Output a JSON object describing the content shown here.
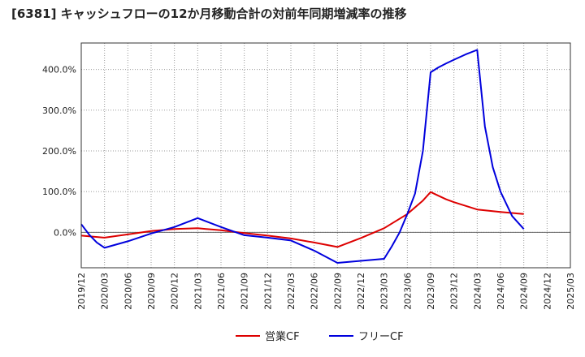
{
  "chart_data": {
    "type": "line",
    "title": "[6381]  キャッシュフローの12か月移動合計の対前年同期増減率の推移",
    "xlabel": "",
    "ylabel": "",
    "x": [
      "2019/12",
      "2020/03",
      "2020/06",
      "2020/09",
      "2020/12",
      "2021/03",
      "2021/06",
      "2021/09",
      "2021/12",
      "2022/03",
      "2022/06",
      "2022/09",
      "2022/12",
      "2023/03",
      "2023/06",
      "2023/09",
      "2023/12",
      "2024/03",
      "2024/06",
      "2024/09",
      "2024/12",
      "2025/03"
    ],
    "ylim": [
      -87,
      465
    ],
    "yticks": [
      0,
      100,
      200,
      300,
      400
    ],
    "ytick_labels": [
      "0.0%",
      "100.0%",
      "200.0%",
      "300.0%",
      "400.0%"
    ],
    "grid": true,
    "legend_position": "bottom-center",
    "series": [
      {
        "name": "営業CF",
        "color": "#dd0000",
        "points": [
          {
            "x": 0,
            "y": -8
          },
          {
            "x": 1,
            "y": -13
          },
          {
            "x": 2,
            "y": -5
          },
          {
            "x": 3,
            "y": 3
          },
          {
            "x": 4,
            "y": 8
          },
          {
            "x": 5,
            "y": 10
          },
          {
            "x": 6,
            "y": 5
          },
          {
            "x": 7,
            "y": -2
          },
          {
            "x": 8,
            "y": -8
          },
          {
            "x": 9,
            "y": -15
          },
          {
            "x": 10,
            "y": -25
          },
          {
            "x": 11,
            "y": -36
          },
          {
            "x": 12,
            "y": -14
          },
          {
            "x": 13,
            "y": 10
          },
          {
            "x": 14,
            "y": 45
          },
          {
            "x": 14.67,
            "y": 78
          },
          {
            "x": 15,
            "y": 99
          },
          {
            "x": 15.33,
            "y": 90
          },
          {
            "x": 15.67,
            "y": 81
          },
          {
            "x": 16,
            "y": 74
          },
          {
            "x": 16.5,
            "y": 65
          },
          {
            "x": 17,
            "y": 56
          },
          {
            "x": 18,
            "y": 50
          },
          {
            "x": 19,
            "y": 45
          }
        ]
      },
      {
        "name": "フリーCF",
        "color": "#0000dd",
        "points": [
          {
            "x": 0,
            "y": 20
          },
          {
            "x": 0.33,
            "y": -5
          },
          {
            "x": 0.67,
            "y": -25
          },
          {
            "x": 1,
            "y": -38
          },
          {
            "x": 2,
            "y": -22
          },
          {
            "x": 3,
            "y": -3
          },
          {
            "x": 4,
            "y": 13
          },
          {
            "x": 5,
            "y": 35
          },
          {
            "x": 6,
            "y": 13
          },
          {
            "x": 7,
            "y": -7
          },
          {
            "x": 8,
            "y": -13
          },
          {
            "x": 9,
            "y": -20
          },
          {
            "x": 10,
            "y": -45
          },
          {
            "x": 11,
            "y": -75
          },
          {
            "x": 12,
            "y": -70
          },
          {
            "x": 13,
            "y": -65
          },
          {
            "x": 13.33,
            "y": -35
          },
          {
            "x": 13.67,
            "y": 0
          },
          {
            "x": 14,
            "y": 45
          },
          {
            "x": 14.33,
            "y": 95
          },
          {
            "x": 14.67,
            "y": 200
          },
          {
            "x": 15,
            "y": 393
          },
          {
            "x": 15.33,
            "y": 405
          },
          {
            "x": 15.67,
            "y": 415
          },
          {
            "x": 16,
            "y": 424
          },
          {
            "x": 16.5,
            "y": 437
          },
          {
            "x": 17,
            "y": 448
          },
          {
            "x": 17.33,
            "y": 260
          },
          {
            "x": 17.67,
            "y": 160
          },
          {
            "x": 18,
            "y": 100
          },
          {
            "x": 18.5,
            "y": 40
          },
          {
            "x": 19,
            "y": 8
          }
        ]
      }
    ]
  }
}
